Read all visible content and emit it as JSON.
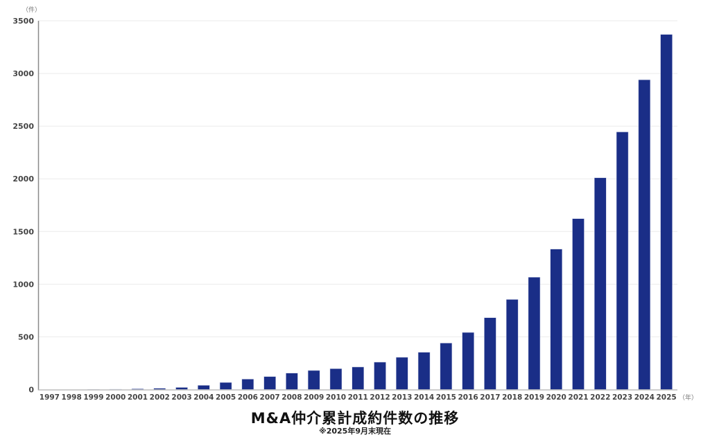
{
  "chart_data": {
    "type": "bar",
    "title": "M&A仲介累計成約件数の推移",
    "subtitle": "※2025年9月末現在",
    "xlabel": "（年）",
    "ylabel": "（件）",
    "ylim": [
      0,
      3500
    ],
    "yticks": [
      0,
      500,
      1000,
      1500,
      2000,
      2500,
      3000,
      3500
    ],
    "grid": true,
    "legend": null,
    "bar_color": "#1a2e87",
    "categories": [
      "1997",
      "1998",
      "1999",
      "2000",
      "2001",
      "2002",
      "2003",
      "2004",
      "2005",
      "2006",
      "2007",
      "2008",
      "2009",
      "2010",
      "2011",
      "2012",
      "2013",
      "2014",
      "2015",
      "2016",
      "2017",
      "2018",
      "2019",
      "2020",
      "2021",
      "2022",
      "2023",
      "2024",
      "2025"
    ],
    "values": [
      0,
      0,
      1,
      3,
      7,
      12,
      20,
      40,
      67,
      99,
      123,
      156,
      181,
      198,
      214,
      260,
      306,
      354,
      441,
      542,
      682,
      855,
      1066,
      1333,
      1622,
      2010,
      2445,
      2940,
      3370
    ]
  },
  "labels": {
    "y_unit": "（件）",
    "x_unit": "（年）",
    "title": "M&A仲介累計成約件数の推移",
    "subtitle": "※2025年9月末現在"
  }
}
